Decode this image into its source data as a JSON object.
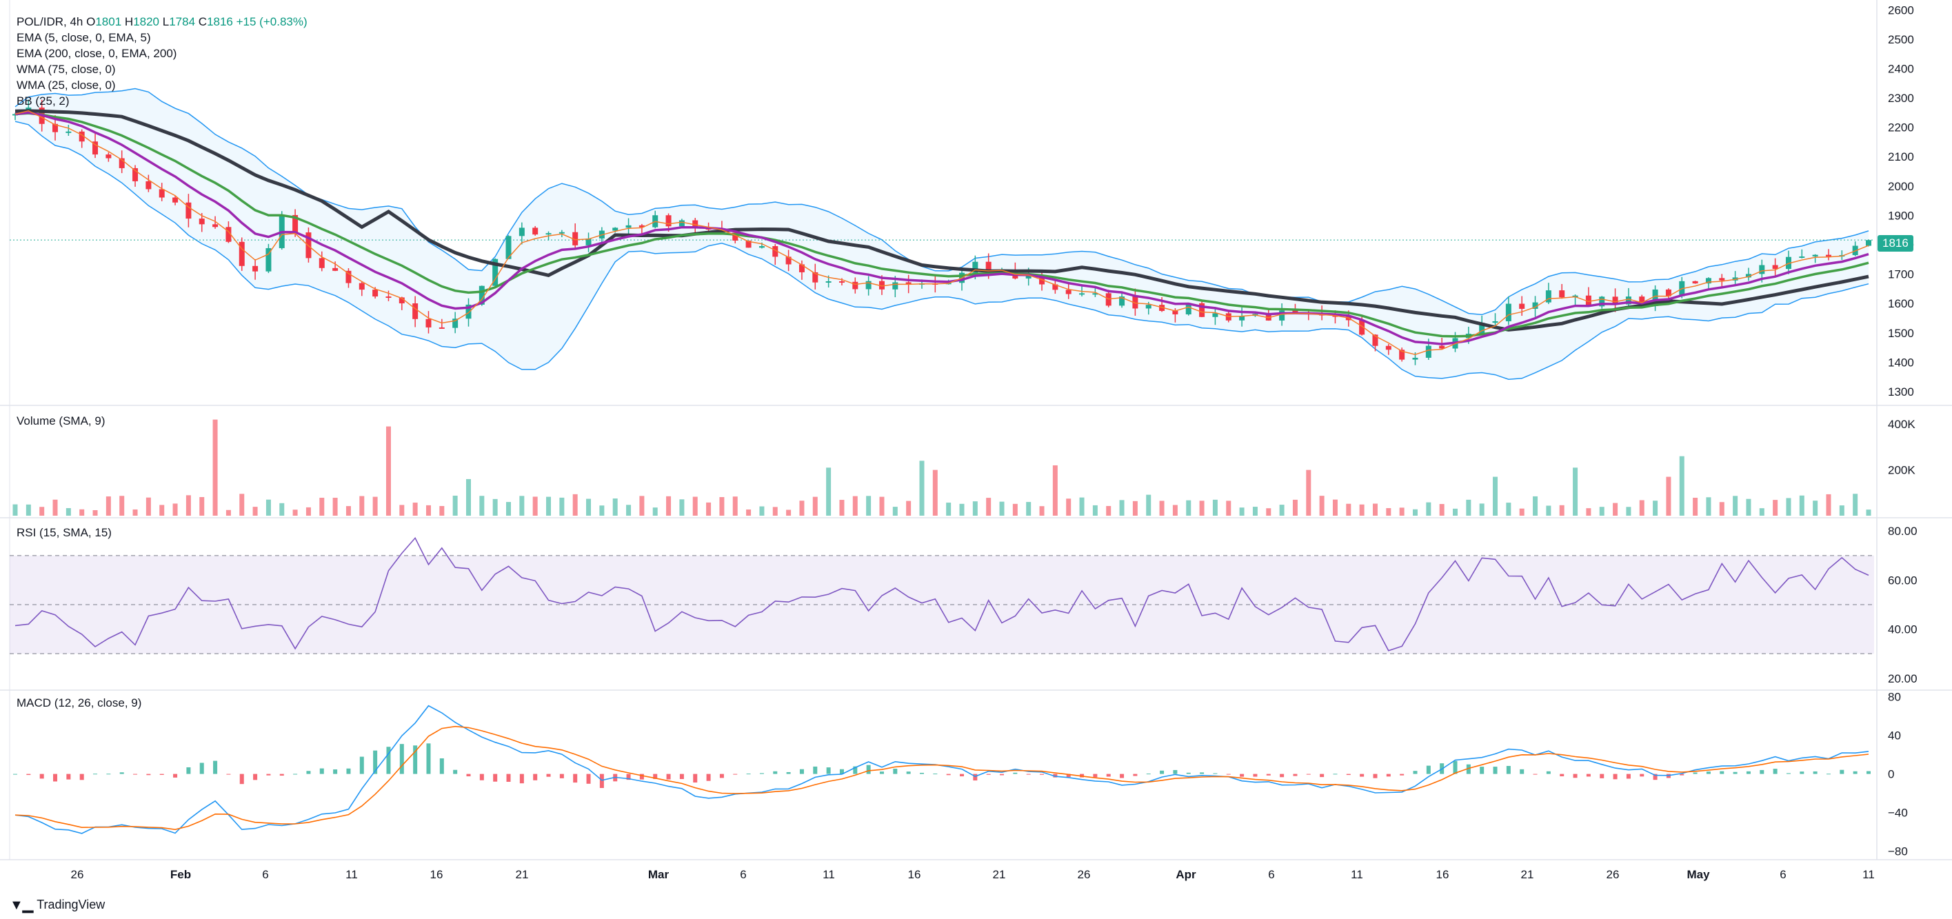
{
  "symbol_line": {
    "symbol": "POL/IDR, 4h",
    "open_label": "O",
    "open": "1801",
    "high_label": "H",
    "high": "1820",
    "low_label": "L",
    "low": "1784",
    "close_label": "C",
    "close": "1816",
    "change": "+15 (+0.83%)"
  },
  "indicators": [
    "EMA (5, close, 0, EMA, 5)",
    "EMA (200, close, 0, EMA, 200)",
    "WMA (75, close, 0)",
    "WMA (25, close, 0)",
    "BB (25, 2)"
  ],
  "panes": {
    "volume_title": "Volume (SMA, 9)",
    "rsi_title": "RSI (15, SMA, 15)",
    "macd_title": "MACD (12, 26, close, 9)"
  },
  "price_tag": "1816",
  "brand": "TradingView",
  "colors": {
    "up": "#22ab94",
    "down": "#f23645",
    "ema5": "#f57c29",
    "ema200": "#363a45",
    "wma75": "#43a047",
    "wma25": "#9c27b0",
    "bb": "#2196f3",
    "rsi": "#7e57c2",
    "macd": "#2196f3",
    "signal": "#ff6d00"
  },
  "chart_data": [
    {
      "type": "candlestick",
      "title": "POL/IDR, 4h",
      "x_ticks": [
        "26",
        "Feb",
        "6",
        "11",
        "16",
        "21",
        "Mar",
        "6",
        "11",
        "16",
        "21",
        "26",
        "Apr",
        "6",
        "11",
        "16",
        "21",
        "26",
        "May",
        "6",
        "11"
      ],
      "y_ticks": [
        1300,
        1400,
        1500,
        1600,
        1700,
        1800,
        1900,
        2000,
        2100,
        2200,
        2300,
        2400,
        2500,
        2600
      ],
      "ylim": [
        1260,
        2610
      ],
      "close_anchors": [
        [
          0,
          2270
        ],
        [
          5,
          2150
        ],
        [
          10,
          1980
        ],
        [
          15,
          1850
        ],
        [
          18,
          1700
        ],
        [
          20,
          1880
        ],
        [
          23,
          1720
        ],
        [
          25,
          1660
        ],
        [
          29,
          1580
        ],
        [
          32,
          1500
        ],
        [
          35,
          1670
        ],
        [
          37,
          1840
        ],
        [
          42,
          1820
        ],
        [
          46,
          1870
        ],
        [
          50,
          1890
        ],
        [
          53,
          1820
        ],
        [
          56,
          1800
        ],
        [
          60,
          1680
        ],
        [
          65,
          1650
        ],
        [
          70,
          1670
        ],
        [
          72,
          1720
        ],
        [
          76,
          1690
        ],
        [
          80,
          1620
        ],
        [
          85,
          1600
        ],
        [
          90,
          1560
        ],
        [
          94,
          1560
        ],
        [
          100,
          1530
        ],
        [
          104,
          1430
        ],
        [
          108,
          1470
        ],
        [
          112,
          1580
        ],
        [
          116,
          1640
        ],
        [
          120,
          1590
        ],
        [
          124,
          1640
        ],
        [
          128,
          1690
        ],
        [
          132,
          1740
        ],
        [
          136,
          1760
        ],
        [
          138,
          1816
        ]
      ],
      "last_close": 1816,
      "series": [
        {
          "name": "EMA (5, close, 0, EMA, 5)",
          "color": "#f57c29"
        },
        {
          "name": "EMA (200, close, 0, EMA, 200)",
          "color": "#363a45"
        },
        {
          "name": "WMA (75, close, 0)",
          "color": "#43a047"
        },
        {
          "name": "WMA (25, close, 0)",
          "color": "#9c27b0"
        },
        {
          "name": "BB (25, 2)",
          "color": "#2196f3"
        }
      ]
    },
    {
      "type": "bar",
      "title": "Volume (SMA, 9)",
      "y_ticks": [
        "200K",
        "400K"
      ],
      "ylim": [
        0,
        470000
      ],
      "typical": 60000,
      "spikes": [
        [
          15,
          420000
        ],
        [
          28,
          390000
        ],
        [
          34,
          160000
        ],
        [
          61,
          210000
        ],
        [
          68,
          240000
        ],
        [
          69,
          200000
        ],
        [
          78,
          220000
        ],
        [
          97,
          200000
        ],
        [
          111,
          170000
        ],
        [
          117,
          210000
        ],
        [
          125,
          260000
        ],
        [
          124,
          170000
        ]
      ]
    },
    {
      "type": "line",
      "title": "RSI (15, SMA, 15)",
      "y_ticks": [
        20,
        40,
        60,
        80
      ],
      "ylim": [
        16,
        84
      ],
      "band": [
        30,
        70
      ],
      "mid": 50,
      "anchors": [
        [
          0,
          47
        ],
        [
          4,
          38
        ],
        [
          8,
          35
        ],
        [
          12,
          47
        ],
        [
          15,
          58
        ],
        [
          17,
          40
        ],
        [
          22,
          38
        ],
        [
          26,
          40
        ],
        [
          28,
          62
        ],
        [
          30,
          78
        ],
        [
          34,
          58
        ],
        [
          38,
          60
        ],
        [
          42,
          52
        ],
        [
          44,
          60
        ],
        [
          48,
          45
        ],
        [
          52,
          46
        ],
        [
          56,
          48
        ],
        [
          60,
          54
        ],
        [
          64,
          48
        ],
        [
          68,
          52
        ],
        [
          72,
          46
        ],
        [
          76,
          50
        ],
        [
          80,
          52
        ],
        [
          84,
          48
        ],
        [
          88,
          52
        ],
        [
          92,
          50
        ],
        [
          96,
          48
        ],
        [
          100,
          40
        ],
        [
          104,
          36
        ],
        [
          108,
          66
        ],
        [
          112,
          60
        ],
        [
          116,
          54
        ],
        [
          120,
          50
        ],
        [
          124,
          56
        ],
        [
          128,
          62
        ],
        [
          132,
          60
        ],
        [
          136,
          64
        ],
        [
          139,
          66
        ]
      ]
    },
    {
      "type": "line",
      "title": "MACD (12, 26, close, 9)",
      "y_ticks": [
        -80,
        -40,
        0,
        40,
        80
      ],
      "ylim": [
        -86,
        84
      ],
      "macd_anchors": [
        [
          0,
          -40
        ],
        [
          4,
          -60
        ],
        [
          8,
          -55
        ],
        [
          12,
          -60
        ],
        [
          15,
          -25
        ],
        [
          17,
          -55
        ],
        [
          21,
          -50
        ],
        [
          25,
          -35
        ],
        [
          28,
          20
        ],
        [
          31,
          72
        ],
        [
          34,
          45
        ],
        [
          38,
          20
        ],
        [
          40,
          25
        ],
        [
          44,
          -5
        ],
        [
          48,
          -10
        ],
        [
          52,
          -25
        ],
        [
          56,
          -20
        ],
        [
          60,
          -5
        ],
        [
          64,
          10
        ],
        [
          68,
          10
        ],
        [
          72,
          0
        ],
        [
          76,
          5
        ],
        [
          80,
          -5
        ],
        [
          84,
          -10
        ],
        [
          88,
          0
        ],
        [
          92,
          -5
        ],
        [
          96,
          -10
        ],
        [
          100,
          -15
        ],
        [
          104,
          -20
        ],
        [
          108,
          15
        ],
        [
          112,
          25
        ],
        [
          116,
          20
        ],
        [
          120,
          5
        ],
        [
          124,
          0
        ],
        [
          128,
          10
        ],
        [
          132,
          15
        ],
        [
          136,
          18
        ],
        [
          139,
          22
        ]
      ]
    }
  ]
}
